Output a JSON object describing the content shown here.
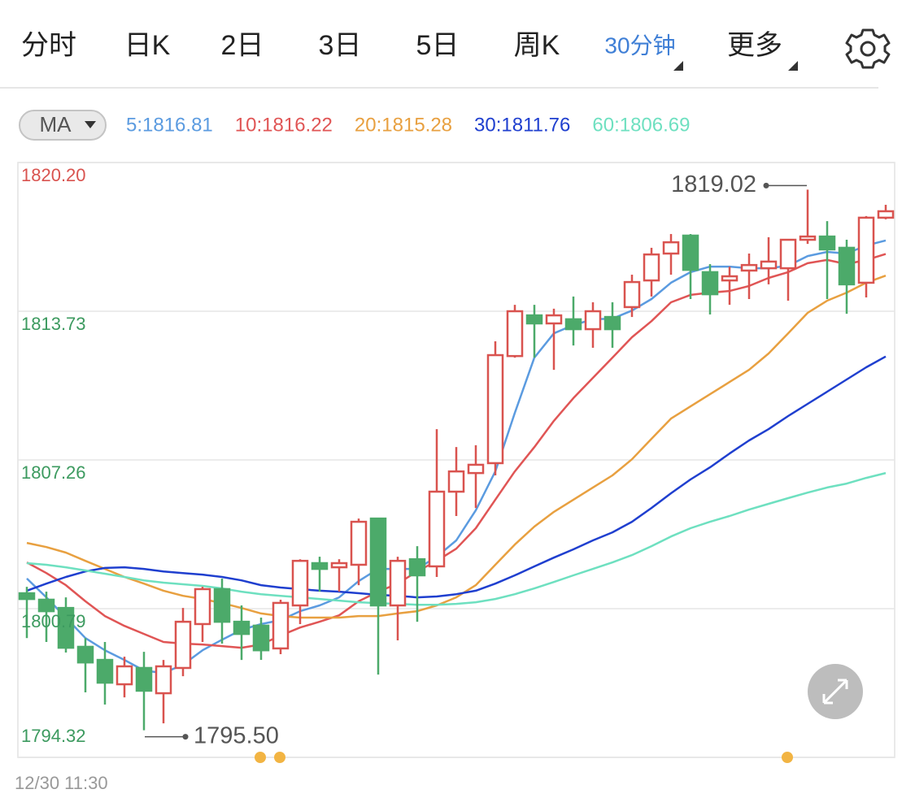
{
  "tabs": [
    "分时",
    "日K",
    "2日",
    "3日",
    "5日",
    "周K",
    "30分钟",
    "更多"
  ],
  "active_tab_index": 6,
  "chart_data": {
    "type": "candlestick",
    "ma_button": "MA",
    "up_color": "#d9534f",
    "down_color": "#4caa6a",
    "open": [
      1801.46,
      1801.18,
      1800.82,
      1799.13,
      1798.56,
      1797.5,
      1798.21,
      1797.11,
      1798.21,
      1800.12,
      1801.64,
      1800.22,
      1800.05,
      1799.06,
      1800.93,
      1802.77,
      1802.59,
      1802.7,
      1804.71,
      1800.93,
      1802.94,
      1802.63,
      1805.88,
      1806.69,
      1807.12,
      1811.78,
      1813.55,
      1813.2,
      1813.38,
      1812.95,
      1813.48,
      1813.91,
      1815.07,
      1816.24,
      1817.02,
      1815.43,
      1815.07,
      1815.5,
      1815.6,
      1815.6,
      1816.84,
      1816.98,
      1816.49,
      1814.97,
      1817.8
    ],
    "high": [
      1801.74,
      1801.53,
      1801.28,
      1799.51,
      1799.34,
      1798.7,
      1798.91,
      1798.56,
      1800.82,
      1801.74,
      1802.1,
      1800.93,
      1800.4,
      1801.18,
      1802.94,
      1803.05,
      1802.94,
      1804.71,
      1804.71,
      1803.05,
      1803.51,
      1808.6,
      1807.82,
      1807.9,
      1812.42,
      1814.01,
      1814.01,
      1813.84,
      1814.37,
      1814.12,
      1814.12,
      1815.32,
      1816.49,
      1817.09,
      1817.09,
      1815.78,
      1815.67,
      1816.24,
      1816.95,
      1816.84,
      1819.02,
      1817.65,
      1816.84,
      1817.87,
      1818.36
    ],
    "low": [
      1799.51,
      1799.34,
      1798.88,
      1797.15,
      1796.62,
      1796.93,
      1795.5,
      1795.8,
      1797.85,
      1799.34,
      1799.27,
      1798.56,
      1798.56,
      1798.81,
      1800.12,
      1801.53,
      1801.53,
      1801.81,
      1797.92,
      1799.41,
      1800.22,
      1802.17,
      1804.82,
      1805.17,
      1806.59,
      1811.71,
      1811.71,
      1811.18,
      1812.24,
      1812.14,
      1812.14,
      1813.48,
      1814.37,
      1815.32,
      1814.26,
      1813.59,
      1814.01,
      1814.26,
      1814.9,
      1814.19,
      1816.66,
      1814.26,
      1813.62,
      1814.33,
      1817.73
    ],
    "close": [
      1801.21,
      1800.68,
      1799.09,
      1798.45,
      1797.57,
      1798.28,
      1797.22,
      1798.28,
      1800.22,
      1801.64,
      1800.22,
      1799.69,
      1798.98,
      1801.04,
      1802.87,
      1802.52,
      1802.77,
      1804.57,
      1800.93,
      1802.87,
      1802.24,
      1805.88,
      1806.76,
      1807.05,
      1811.82,
      1813.73,
      1813.2,
      1813.55,
      1812.95,
      1813.73,
      1812.95,
      1815.0,
      1816.2,
      1816.73,
      1815.53,
      1814.47,
      1815.25,
      1815.74,
      1815.89,
      1816.84,
      1816.98,
      1816.42,
      1814.9,
      1817.8,
      1818.08
    ],
    "ma_series": [
      {
        "name": "5:1816.81",
        "color": "#5b9be0",
        "values": [
          1802.1,
          1801.28,
          1800.4,
          1799.51,
          1798.98,
          1798.56,
          1798.1,
          1797.99,
          1798.35,
          1798.98,
          1799.44,
          1799.87,
          1800.12,
          1800.29,
          1800.68,
          1800.93,
          1801.28,
          1801.99,
          1802.52,
          1802.52,
          1802.52,
          1803.05,
          1803.76,
          1805.07,
          1806.76,
          1809.31,
          1811.71,
          1812.77,
          1813.13,
          1813.38,
          1813.41,
          1813.76,
          1814.26,
          1814.97,
          1815.43,
          1815.67,
          1815.67,
          1815.6,
          1815.6,
          1815.71,
          1816.13,
          1816.31,
          1816.24,
          1816.59,
          1816.81
        ]
      },
      {
        "name": "10:1816.22",
        "color": "#e05555",
        "values": [
          1802.8,
          1802.34,
          1801.81,
          1801.11,
          1800.47,
          1800.04,
          1799.69,
          1799.34,
          1799.27,
          1799.23,
          1799.16,
          1799.09,
          1799.23,
          1799.62,
          1799.97,
          1800.22,
          1800.5,
          1801.11,
          1801.53,
          1801.88,
          1802.41,
          1802.87,
          1803.4,
          1804.29,
          1805.53,
          1806.76,
          1807.82,
          1808.96,
          1809.95,
          1810.83,
          1811.71,
          1812.6,
          1813.3,
          1814.12,
          1814.44,
          1814.54,
          1814.61,
          1814.83,
          1815.18,
          1815.43,
          1815.82,
          1815.96,
          1815.78,
          1815.96,
          1816.22
        ]
      },
      {
        "name": "20:1815.28",
        "color": "#e8a040",
        "values": [
          1803.65,
          1803.47,
          1803.23,
          1802.87,
          1802.52,
          1802.17,
          1801.88,
          1801.57,
          1801.35,
          1801.21,
          1801.03,
          1800.82,
          1800.58,
          1800.47,
          1800.4,
          1800.4,
          1800.4,
          1800.47,
          1800.47,
          1800.58,
          1800.68,
          1800.93,
          1801.28,
          1801.81,
          1802.7,
          1803.58,
          1804.36,
          1805.0,
          1805.53,
          1806.06,
          1806.59,
          1807.29,
          1808.18,
          1809.06,
          1809.59,
          1810.12,
          1810.65,
          1811.18,
          1811.89,
          1812.77,
          1813.66,
          1814.19,
          1814.54,
          1814.97,
          1815.28
        ]
      },
      {
        "name": "30:1811.76",
        "color": "#1f3fcf",
        "values": [
          1801.57,
          1801.88,
          1802.17,
          1802.41,
          1802.56,
          1802.59,
          1802.52,
          1802.41,
          1802.34,
          1802.27,
          1802.17,
          1802.02,
          1801.81,
          1801.71,
          1801.64,
          1801.57,
          1801.53,
          1801.46,
          1801.39,
          1801.35,
          1801.28,
          1801.32,
          1801.42,
          1801.57,
          1801.88,
          1802.24,
          1802.63,
          1803.01,
          1803.37,
          1803.76,
          1804.11,
          1804.57,
          1805.17,
          1805.81,
          1806.41,
          1806.94,
          1807.54,
          1808.11,
          1808.6,
          1809.17,
          1809.7,
          1810.23,
          1810.76,
          1811.29,
          1811.76
        ]
      },
      {
        "name": "60:1806.69",
        "color": "#6ee0c0",
        "values": [
          1802.77,
          1802.7,
          1802.59,
          1802.45,
          1802.31,
          1802.17,
          1802.02,
          1801.92,
          1801.85,
          1801.78,
          1801.67,
          1801.53,
          1801.42,
          1801.35,
          1801.28,
          1801.21,
          1801.14,
          1801.07,
          1801.03,
          1801.0,
          1800.96,
          1800.96,
          1801.0,
          1801.07,
          1801.21,
          1801.42,
          1801.67,
          1801.95,
          1802.24,
          1802.52,
          1802.8,
          1803.12,
          1803.51,
          1803.93,
          1804.29,
          1804.57,
          1804.82,
          1805.1,
          1805.35,
          1805.6,
          1805.84,
          1806.06,
          1806.23,
          1806.48,
          1806.69
        ]
      }
    ],
    "ylim": [
      1794.32,
      1820.2
    ],
    "yticks": [
      {
        "value": 1820.2,
        "label": "1820.20"
      },
      1813.73,
      1807.26,
      1800.79,
      1794.32
    ],
    "ytick_colors": [
      "#d9534f",
      "#3c9a5f",
      "#3c9a5f",
      "#3c9a5f",
      "#3c9a5f"
    ],
    "grid": true,
    "high_label": {
      "value": 1819.02,
      "label": "1819.02"
    },
    "low_label": {
      "value": 1795.5,
      "label": "1795.50"
    },
    "date_label": "12/30 11:30"
  }
}
